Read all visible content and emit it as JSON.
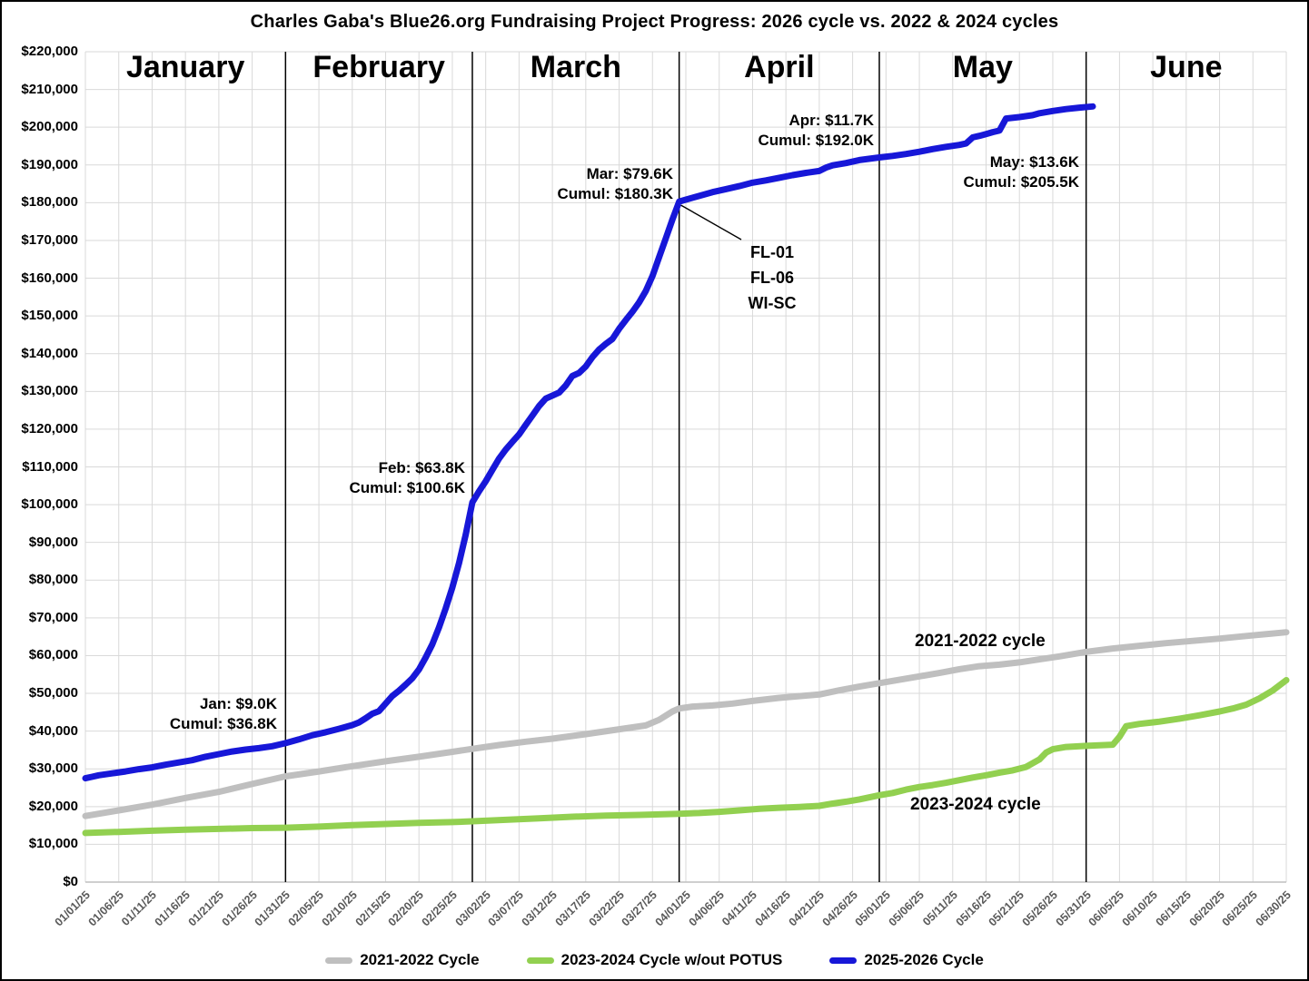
{
  "title": "Charles Gaba's Blue26.org Fundraising Project Progress: 2026 cycle vs. 2022 & 2024 cycles",
  "months": [
    "January",
    "February",
    "March",
    "April",
    "May",
    "June"
  ],
  "y_axis_labels": [
    "$220,000",
    "$210,000",
    "$200,000",
    "$190,000",
    "$180,000",
    "$170,000",
    "$160,000",
    "$150,000",
    "$140,000",
    "$130,000",
    "$120,000",
    "$110,000",
    "$100,000",
    "$90,000",
    "$80,000",
    "$70,000",
    "$60,000",
    "$50,000",
    "$40,000",
    "$30,000",
    "$20,000",
    "$10,000",
    "$0"
  ],
  "x_axis_labels": [
    "01/01/25",
    "01/06/25",
    "01/11/25",
    "01/16/25",
    "01/21/25",
    "01/26/25",
    "01/31/25",
    "02/05/25",
    "02/10/25",
    "02/15/25",
    "02/20/25",
    "02/25/25",
    "03/02/25",
    "03/07/25",
    "03/12/25",
    "03/17/25",
    "03/22/25",
    "03/27/25",
    "04/01/25",
    "04/06/25",
    "04/11/25",
    "04/16/25",
    "04/21/25",
    "04/26/25",
    "05/01/25",
    "05/06/25",
    "05/11/25",
    "05/16/25",
    "05/21/25",
    "05/26/25",
    "05/31/25",
    "06/05/25",
    "06/10/25",
    "06/15/25",
    "06/20/25",
    "06/25/25",
    "06/30/25"
  ],
  "legend": {
    "items": [
      {
        "label": "2021-2022 Cycle",
        "color": "#bfbfbf"
      },
      {
        "label": "2023-2024 Cycle w/out POTUS",
        "color": "#92d050"
      },
      {
        "label": "2025-2026 Cycle",
        "color": "#1717d8"
      }
    ]
  },
  "annotations": {
    "jan": {
      "line1": "Jan: $9.0K",
      "line2": "Cumul: $36.8K"
    },
    "feb": {
      "line1": "Feb: $63.8K",
      "line2": "Cumul: $100.6K"
    },
    "mar": {
      "line1": "Mar: $79.6K",
      "line2": "Cumul: $180.3K"
    },
    "apr": {
      "line1": "Apr: $11.7K",
      "line2": "Cumul: $192.0K"
    },
    "may": {
      "line1": "May: $13.6K",
      "line2": "Cumul: $205.5K"
    },
    "callout": {
      "line1": "FL-01",
      "line2": "FL-06",
      "line3": "WI-SC"
    },
    "gray_series_label": "2021-2022 cycle",
    "green_series_label": "2023-2024 cycle"
  },
  "colors": {
    "gridline": "#d9d9d9",
    "month_separator": "#000000",
    "axis_line": "#bfbfbf",
    "x_tick_label": "#595959",
    "callout_line": "#000000"
  },
  "chart_data": {
    "type": "line",
    "title": "Charles Gaba's Blue26.org Fundraising Project Progress: 2026 cycle vs. 2022 & 2024 cycles",
    "x_unit": "days since 01/01/2025",
    "x_tick_step_days": 5,
    "x_range_days": [
      0,
      180
    ],
    "ylim": [
      0,
      220000
    ],
    "y_tick_step": 10000,
    "grid": "on",
    "legend_position": "bottom",
    "month_end_days": [
      30,
      58,
      89,
      119,
      150
    ],
    "monthly_totals": {
      "Jan": 9000,
      "Feb": 63800,
      "Mar": 79600,
      "Apr": 11700,
      "May": 13600,
      "cumulative_end_of_month": [
        36800,
        100600,
        180300,
        192000,
        205500
      ]
    },
    "series": [
      {
        "name": "2021-2022 Cycle",
        "color": "#bfbfbf",
        "points": [
          [
            0,
            17500
          ],
          [
            5,
            19000
          ],
          [
            10,
            20500
          ],
          [
            15,
            22300
          ],
          [
            20,
            23900
          ],
          [
            25,
            26000
          ],
          [
            30,
            28000
          ],
          [
            35,
            29300
          ],
          [
            40,
            30700
          ],
          [
            45,
            32000
          ],
          [
            50,
            33200
          ],
          [
            55,
            34500
          ],
          [
            58,
            35300
          ],
          [
            62,
            36300
          ],
          [
            66,
            37200
          ],
          [
            70,
            38000
          ],
          [
            75,
            39200
          ],
          [
            80,
            40500
          ],
          [
            84,
            41500
          ],
          [
            86,
            43000
          ],
          [
            88,
            45200
          ],
          [
            89,
            46000
          ],
          [
            91,
            46500
          ],
          [
            94,
            46800
          ],
          [
            97,
            47300
          ],
          [
            100,
            48000
          ],
          [
            104,
            48800
          ],
          [
            108,
            49400
          ],
          [
            110,
            49700
          ],
          [
            113,
            50800
          ],
          [
            116,
            51800
          ],
          [
            119,
            52700
          ],
          [
            122,
            53600
          ],
          [
            125,
            54500
          ],
          [
            128,
            55400
          ],
          [
            131,
            56400
          ],
          [
            134,
            57200
          ],
          [
            137,
            57600
          ],
          [
            140,
            58200
          ],
          [
            143,
            59000
          ],
          [
            146,
            59800
          ],
          [
            150,
            61000
          ],
          [
            154,
            61900
          ],
          [
            158,
            62600
          ],
          [
            162,
            63300
          ],
          [
            166,
            63900
          ],
          [
            170,
            64500
          ],
          [
            174,
            65200
          ],
          [
            180,
            66200
          ]
        ]
      },
      {
        "name": "2023-2024 Cycle w/out POTUS",
        "color": "#92d050",
        "points": [
          [
            0,
            13000
          ],
          [
            5,
            13300
          ],
          [
            10,
            13600
          ],
          [
            15,
            13900
          ],
          [
            20,
            14100
          ],
          [
            25,
            14300
          ],
          [
            30,
            14400
          ],
          [
            35,
            14700
          ],
          [
            40,
            15100
          ],
          [
            45,
            15400
          ],
          [
            50,
            15700
          ],
          [
            55,
            15900
          ],
          [
            58,
            16100
          ],
          [
            63,
            16500
          ],
          [
            68,
            16900
          ],
          [
            73,
            17300
          ],
          [
            78,
            17600
          ],
          [
            83,
            17800
          ],
          [
            89,
            18100
          ],
          [
            92,
            18300
          ],
          [
            95,
            18600
          ],
          [
            98,
            19000
          ],
          [
            101,
            19400
          ],
          [
            104,
            19700
          ],
          [
            107,
            19900
          ],
          [
            110,
            20200
          ],
          [
            112,
            20800
          ],
          [
            114,
            21300
          ],
          [
            116,
            21900
          ],
          [
            119,
            23000
          ],
          [
            121,
            23600
          ],
          [
            123,
            24500
          ],
          [
            125,
            25200
          ],
          [
            127,
            25700
          ],
          [
            129,
            26300
          ],
          [
            131,
            27000
          ],
          [
            133,
            27700
          ],
          [
            135,
            28300
          ],
          [
            137,
            29000
          ],
          [
            139,
            29600
          ],
          [
            141,
            30500
          ],
          [
            143,
            32500
          ],
          [
            144,
            34300
          ],
          [
            145,
            35200
          ],
          [
            147,
            35800
          ],
          [
            150,
            36100
          ],
          [
            154,
            36400
          ],
          [
            155,
            38500
          ],
          [
            156,
            41300
          ],
          [
            158,
            41900
          ],
          [
            161,
            42500
          ],
          [
            164,
            43300
          ],
          [
            167,
            44200
          ],
          [
            170,
            45200
          ],
          [
            172,
            46000
          ],
          [
            174,
            47000
          ],
          [
            176,
            48700
          ],
          [
            178,
            50800
          ],
          [
            180,
            53500
          ]
        ]
      },
      {
        "name": "2025-2026 Cycle",
        "color": "#1717d8",
        "points": [
          [
            0,
            27500
          ],
          [
            1,
            27900
          ],
          [
            2,
            28300
          ],
          [
            4,
            28800
          ],
          [
            6,
            29300
          ],
          [
            8,
            29900
          ],
          [
            10,
            30400
          ],
          [
            12,
            31100
          ],
          [
            14,
            31700
          ],
          [
            16,
            32300
          ],
          [
            18,
            33200
          ],
          [
            20,
            33900
          ],
          [
            22,
            34600
          ],
          [
            24,
            35100
          ],
          [
            26,
            35500
          ],
          [
            28,
            36000
          ],
          [
            30,
            36800
          ],
          [
            32,
            37800
          ],
          [
            34,
            38900
          ],
          [
            36,
            39700
          ],
          [
            38,
            40600
          ],
          [
            40,
            41600
          ],
          [
            41,
            42300
          ],
          [
            42,
            43400
          ],
          [
            43,
            44600
          ],
          [
            44,
            45300
          ],
          [
            45,
            47300
          ],
          [
            46,
            49300
          ],
          [
            47,
            50700
          ],
          [
            48,
            52300
          ],
          [
            49,
            54000
          ],
          [
            50,
            56300
          ],
          [
            51,
            59500
          ],
          [
            52,
            63000
          ],
          [
            53,
            67500
          ],
          [
            54,
            72500
          ],
          [
            55,
            78000
          ],
          [
            56,
            84500
          ],
          [
            57,
            92000
          ],
          [
            58,
            100600
          ],
          [
            59,
            103500
          ],
          [
            60,
            106200
          ],
          [
            61,
            109200
          ],
          [
            62,
            112200
          ],
          [
            63,
            114600
          ],
          [
            64,
            116600
          ],
          [
            65,
            118600
          ],
          [
            66,
            121100
          ],
          [
            67,
            123600
          ],
          [
            68,
            126100
          ],
          [
            69,
            128100
          ],
          [
            70,
            128900
          ],
          [
            71,
            129700
          ],
          [
            72,
            131600
          ],
          [
            73,
            134100
          ],
          [
            74,
            134900
          ],
          [
            75,
            136600
          ],
          [
            76,
            139100
          ],
          [
            77,
            141100
          ],
          [
            78,
            142600
          ],
          [
            79,
            143900
          ],
          [
            80,
            146600
          ],
          [
            81,
            148900
          ],
          [
            82,
            151100
          ],
          [
            83,
            153600
          ],
          [
            84,
            156600
          ],
          [
            85,
            160600
          ],
          [
            86,
            165600
          ],
          [
            87,
            170600
          ],
          [
            88,
            175600
          ],
          [
            89,
            180300
          ],
          [
            90,
            180800
          ],
          [
            92,
            181800
          ],
          [
            94,
            182800
          ],
          [
            96,
            183600
          ],
          [
            98,
            184400
          ],
          [
            100,
            185300
          ],
          [
            102,
            185900
          ],
          [
            104,
            186600
          ],
          [
            106,
            187300
          ],
          [
            108,
            187900
          ],
          [
            110,
            188400
          ],
          [
            111,
            189300
          ],
          [
            112,
            189900
          ],
          [
            114,
            190500
          ],
          [
            116,
            191300
          ],
          [
            119,
            192000
          ],
          [
            121,
            192400
          ],
          [
            123,
            192900
          ],
          [
            125,
            193500
          ],
          [
            127,
            194200
          ],
          [
            129,
            194800
          ],
          [
            131,
            195300
          ],
          [
            132,
            195700
          ],
          [
            133,
            197300
          ],
          [
            134,
            197700
          ],
          [
            135,
            198200
          ],
          [
            136,
            198700
          ],
          [
            137,
            199100
          ],
          [
            138,
            202300
          ],
          [
            140,
            202700
          ],
          [
            142,
            203200
          ],
          [
            143,
            203700
          ],
          [
            145,
            204300
          ],
          [
            147,
            204800
          ],
          [
            149,
            205200
          ],
          [
            151,
            205500
          ]
        ]
      }
    ]
  }
}
